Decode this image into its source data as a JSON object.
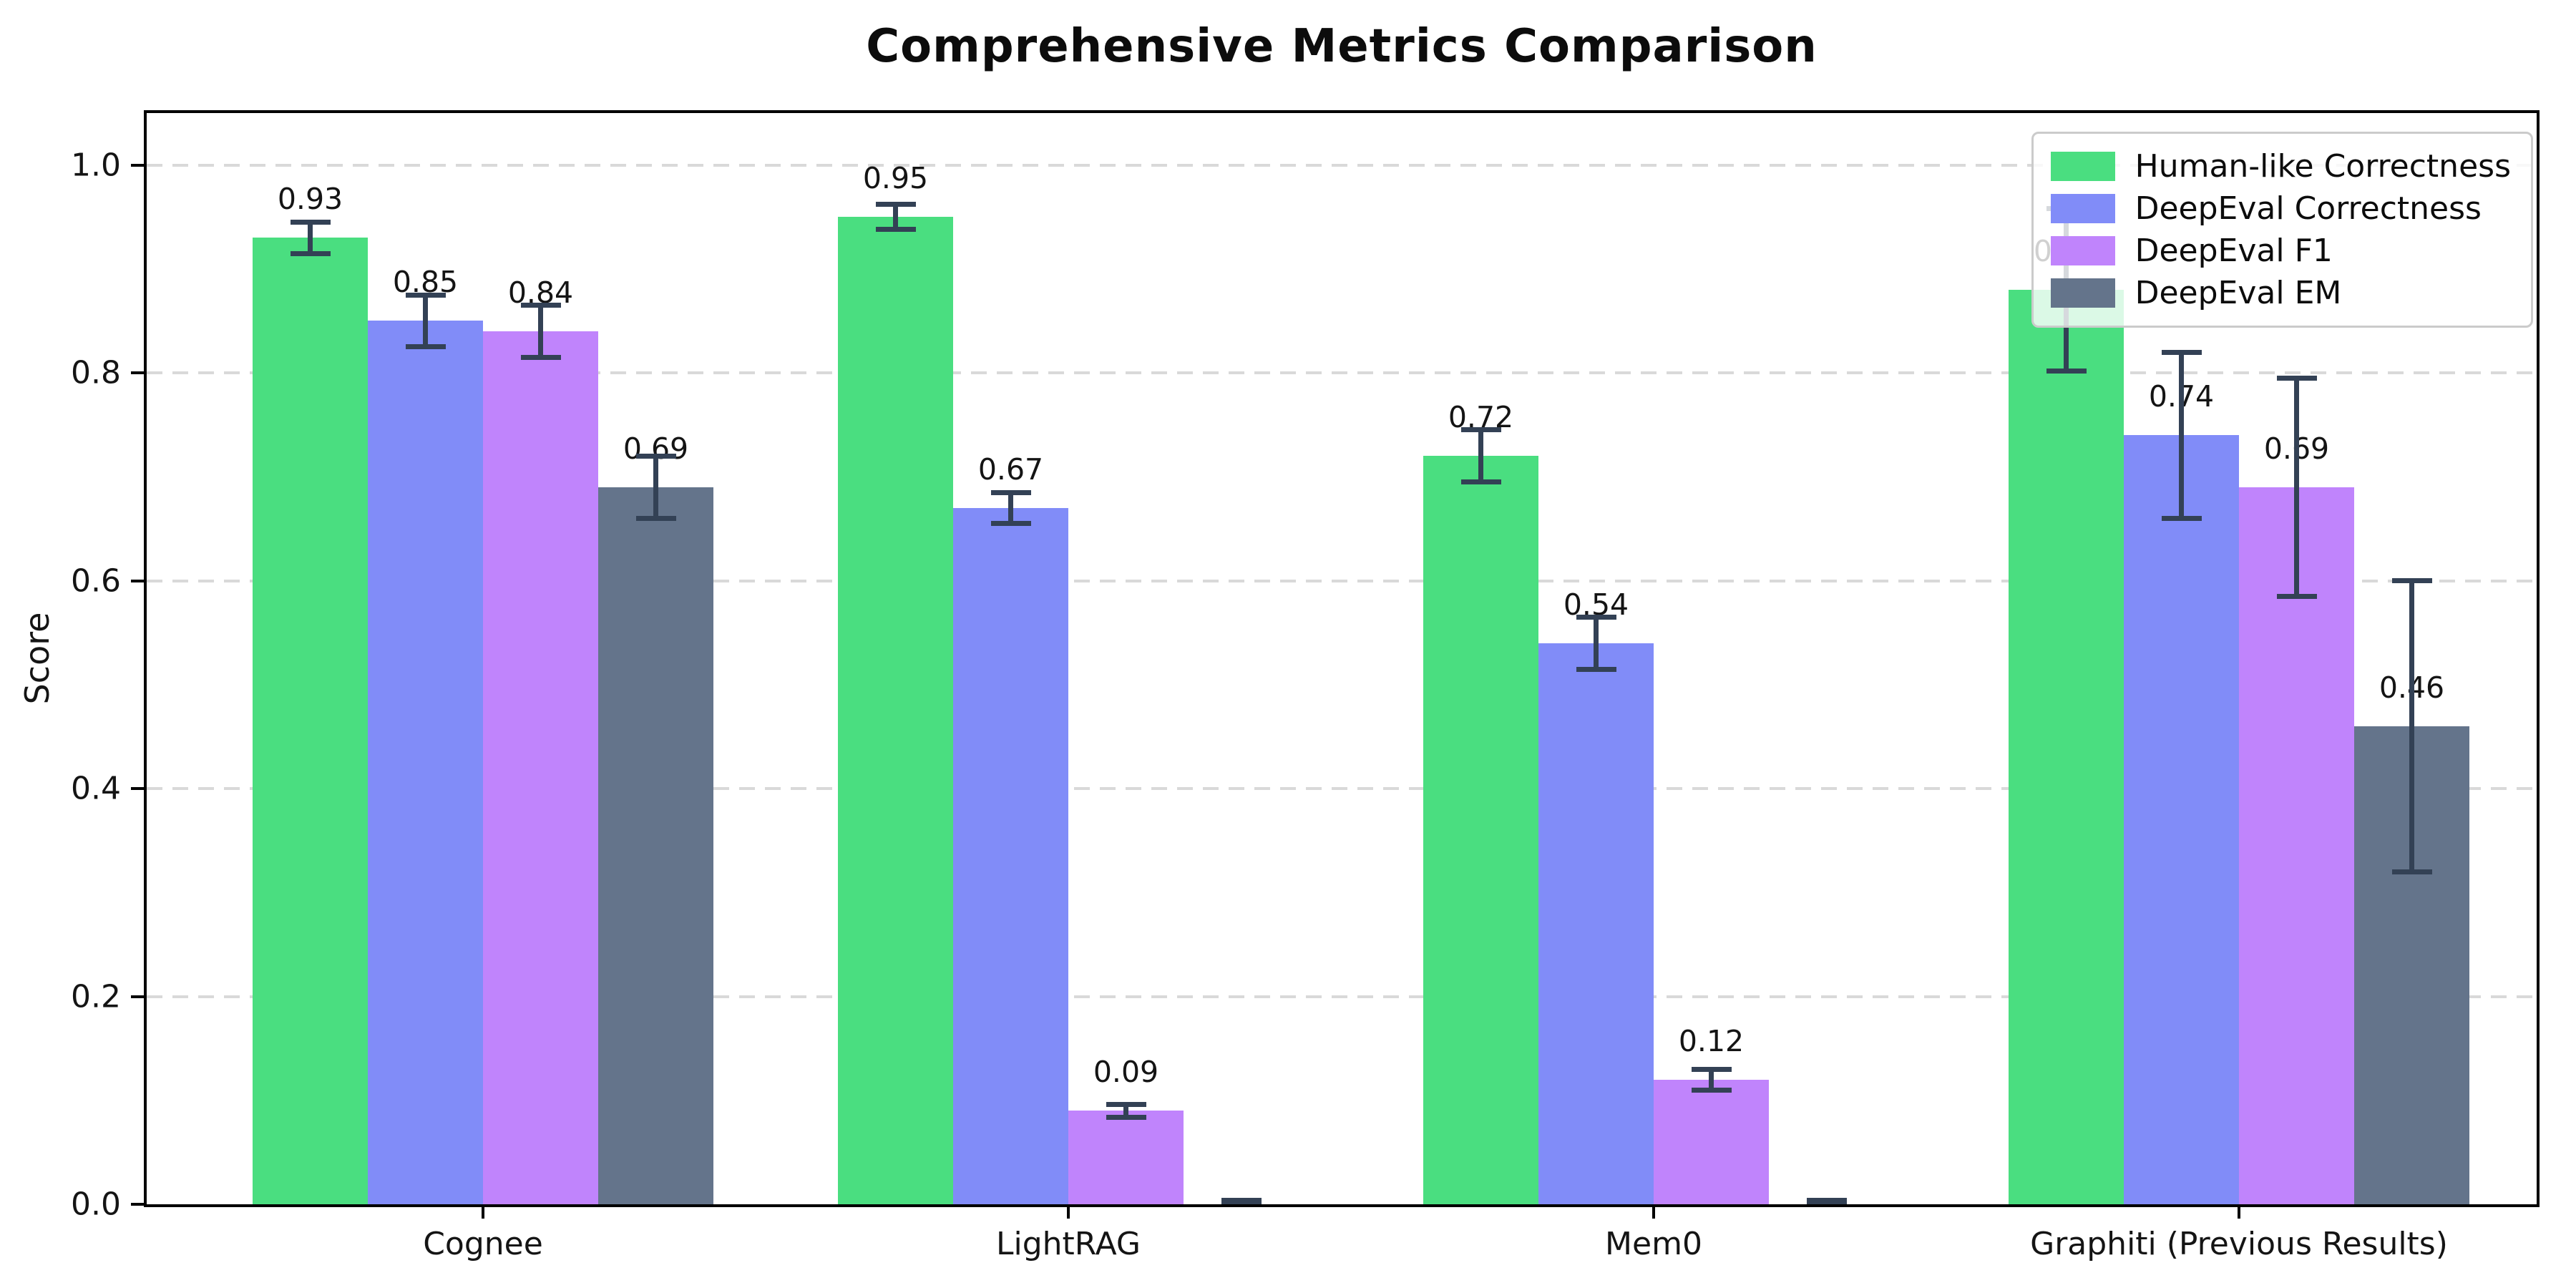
{
  "title": "Comprehensive Metrics Comparison",
  "axes": {
    "ylabel": "Score",
    "yticks": [
      "0.0",
      "0.2",
      "0.4",
      "0.6",
      "0.8",
      "1.0"
    ],
    "ylim": [
      0,
      1.05
    ],
    "grid": "dashed-horizontal"
  },
  "legend": {
    "position": "top-right",
    "items": [
      {
        "label": "Human-like Correctness",
        "color": "#4ade80"
      },
      {
        "label": "DeepEval Correctness",
        "color": "#818cf8"
      },
      {
        "label": "DeepEval F1",
        "color": "#c084fc"
      },
      {
        "label": "DeepEval EM",
        "color": "#64748b"
      }
    ]
  },
  "chart_data": {
    "type": "bar",
    "title": "Comprehensive Metrics Comparison",
    "xlabel": "",
    "ylabel": "Score",
    "ylim": [
      0,
      1.05
    ],
    "grid": true,
    "legend_position": "top-right",
    "categories": [
      "Cognee",
      "LightRAG",
      "Mem0",
      "Graphiti (Previous Results)"
    ],
    "series": [
      {
        "name": "Human-like Correctness",
        "color": "#4ade80",
        "values": [
          0.93,
          0.95,
          0.72,
          0.88
        ],
        "errors": [
          0.015,
          0.012,
          0.025,
          0.078
        ]
      },
      {
        "name": "DeepEval Correctness",
        "color": "#818cf8",
        "values": [
          0.85,
          0.67,
          0.54,
          0.74
        ],
        "errors": [
          0.025,
          0.015,
          0.025,
          0.08
        ]
      },
      {
        "name": "DeepEval F1",
        "color": "#c084fc",
        "values": [
          0.84,
          0.09,
          0.12,
          0.69
        ],
        "errors": [
          0.025,
          0.006,
          0.01,
          0.105
        ]
      },
      {
        "name": "DeepEval EM",
        "color": "#64748b",
        "values": [
          0.69,
          0.0,
          0.0,
          0.46
        ],
        "errors": [
          0.03,
          0.004,
          0.004,
          0.14
        ]
      }
    ],
    "bar_value_label_format": "two_decimals",
    "bar_value_labels_hidden_for_zero": true,
    "error_bar_color": "#334155"
  }
}
